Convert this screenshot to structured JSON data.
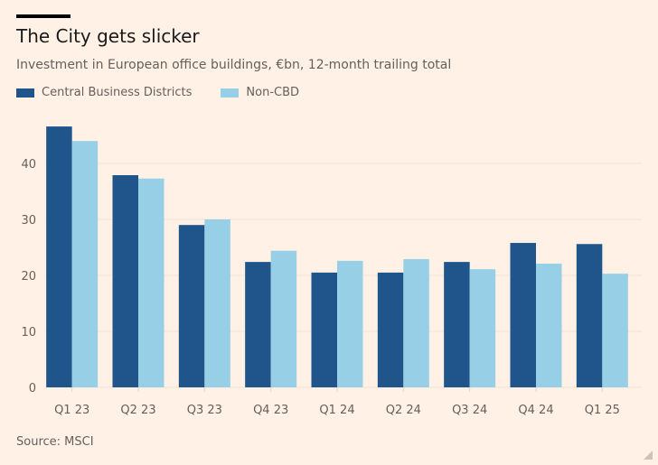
{
  "chart_data": {
    "type": "bar",
    "title": "The City gets slicker",
    "subtitle": "Investment in European office buildings, €bn, 12-month trailing total",
    "categories": [
      "Q1 23",
      "Q2 23",
      "Q3 23",
      "Q4 23",
      "Q1 24",
      "Q2 24",
      "Q3 24",
      "Q4 24",
      "Q1 25"
    ],
    "series": [
      {
        "name": "Central Business Districts",
        "color": "#1f558a",
        "values": [
          46.6,
          37.9,
          29.0,
          22.4,
          20.5,
          20.5,
          22.4,
          25.8,
          25.6
        ]
      },
      {
        "name": "Non-CBD",
        "color": "#96cfe6",
        "values": [
          44.0,
          37.3,
          30.0,
          24.4,
          22.6,
          22.9,
          21.1,
          22.1,
          20.3
        ]
      }
    ],
    "yticks": [
      0,
      10,
      20,
      30,
      40
    ],
    "ylim": [
      0,
      47
    ],
    "xlabel": "",
    "ylabel": "",
    "grid": true,
    "legend": "top-left",
    "source": "Source: MSCI"
  }
}
